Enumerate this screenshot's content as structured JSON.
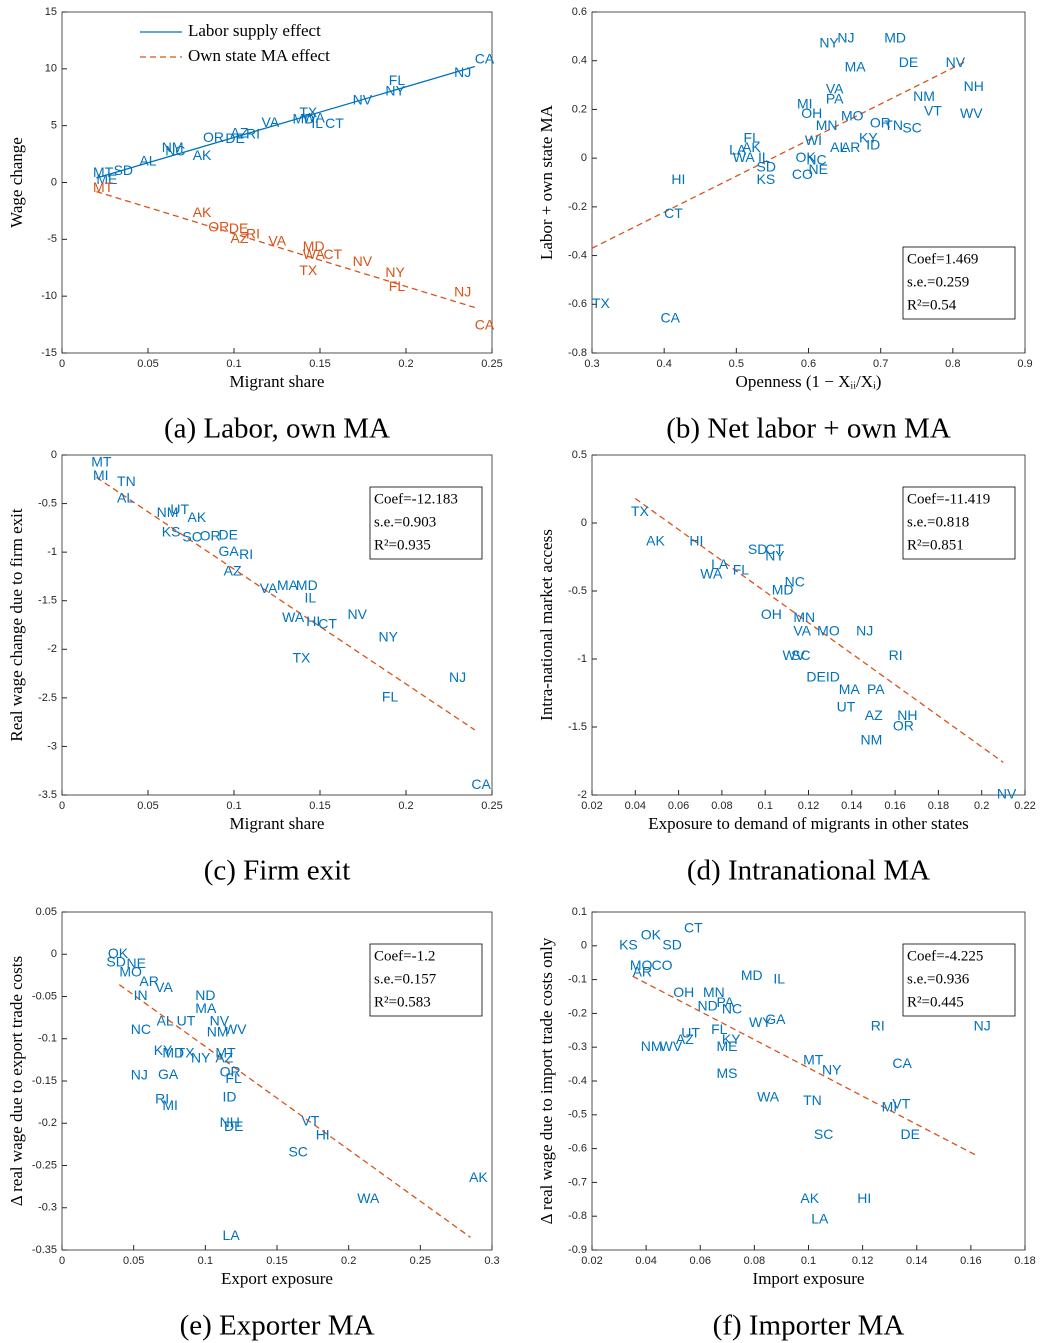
{
  "chart_data": [
    {
      "type": "scatter",
      "caption": "(a) Labor, own MA",
      "xlabel": "Migrant share",
      "ylabel": "Wage change",
      "xlim": [
        0,
        0.25
      ],
      "xticks": [
        0,
        0.05,
        0.1,
        0.15,
        0.2,
        0.25
      ],
      "ylim": [
        -15,
        15
      ],
      "yticks": [
        -15,
        -10,
        -5,
        0,
        5,
        10,
        15
      ],
      "legend": "upper left",
      "series": [
        {
          "name": "Labor supply effect",
          "color": "#0072bd",
          "line_style": "solid",
          "labels": [
            "CA",
            "NJ",
            "FL",
            "NY",
            "NV",
            "TX",
            "CT",
            "IL",
            "WA",
            "MD",
            "VA",
            "RI",
            "AZ",
            "DE",
            "OR",
            "AK",
            "NM",
            "NC",
            "AL",
            "SD",
            "MT",
            "ME"
          ],
          "x": [
            0.24,
            0.228,
            0.19,
            0.188,
            0.169,
            0.138,
            0.153,
            0.145,
            0.14,
            0.134,
            0.116,
            0.107,
            0.098,
            0.095,
            0.082,
            0.076,
            0.058,
            0.06,
            0.045,
            0.03,
            0.018,
            0.02
          ],
          "values": [
            10.8,
            9.6,
            8.9,
            8.0,
            7.2,
            6.1,
            5.1,
            5.1,
            5.6,
            5.5,
            5.2,
            4.2,
            4.3,
            3.8,
            3.9,
            2.3,
            3.0,
            2.7,
            1.8,
            1.0,
            0.8,
            0.2
          ],
          "fit_x": [
            0.02,
            0.24
          ],
          "fit_values": [
            0.4,
            10.2
          ]
        },
        {
          "name": "Own state MA effect",
          "color": "#d95319",
          "line_style": "dashed",
          "labels": [
            "CA",
            "NJ",
            "FL",
            "NY",
            "NV",
            "TX",
            "WA",
            "CT",
            "MD",
            "VA",
            "RI",
            "AZ",
            "DE",
            "OR",
            "AK",
            "MT"
          ],
          "x": [
            0.24,
            0.228,
            0.19,
            0.188,
            0.169,
            0.138,
            0.14,
            0.152,
            0.14,
            0.12,
            0.107,
            0.098,
            0.097,
            0.085,
            0.076,
            0.018
          ],
          "values": [
            -12.6,
            -9.7,
            -9.2,
            -8.0,
            -7.0,
            -7.8,
            -6.4,
            -6.4,
            -5.7,
            -5.2,
            -4.6,
            -5.0,
            -4.1,
            -4.0,
            -2.7,
            -0.5
          ],
          "fit_x": [
            0.02,
            0.24
          ],
          "fit_values": [
            -0.8,
            -11.0
          ]
        }
      ]
    },
    {
      "type": "scatter",
      "caption": "(b) Net labor + own MA",
      "xlabel": "Openness (1 − Xᵢᵢ/Xᵢ)",
      "ylabel": "Labor + own state MA",
      "xlim": [
        0.3,
        0.9
      ],
      "xticks": [
        0.3,
        0.4,
        0.5,
        0.6,
        0.7,
        0.8,
        0.9
      ],
      "ylim": [
        -0.8,
        0.6
      ],
      "yticks": [
        -0.8,
        -0.6,
        -0.4,
        -0.2,
        0,
        0.2,
        0.4,
        0.6
      ],
      "stats": [
        "Coef=1.469",
        "s.e.=0.259",
        "R²=0.54"
      ],
      "stats_loc": "lower right",
      "series": [
        {
          "color": "#0072bd",
          "labels": [
            "TX",
            "CA",
            "HI",
            "CT",
            "LA",
            "AK",
            "FL",
            "WA",
            "IL",
            "SD",
            "KS",
            "OK",
            "NC",
            "CO",
            "NE",
            "MI",
            "OH",
            "NY",
            "NJ",
            "MD",
            "DE",
            "MA",
            "VA",
            "PA",
            "MO",
            "NV",
            "NH",
            "NM",
            "VT",
            "WV",
            "SC",
            "TN",
            "OR",
            "ID",
            "KY",
            "AL",
            "MN",
            "WI",
            "AR"
          ],
          "x": [
            0.3,
            0.395,
            0.41,
            0.4,
            0.49,
            0.508,
            0.51,
            0.495,
            0.53,
            0.528,
            0.528,
            0.582,
            0.597,
            0.577,
            0.6,
            0.584,
            0.59,
            0.615,
            0.64,
            0.705,
            0.725,
            0.65,
            0.624,
            0.624,
            0.645,
            0.79,
            0.815,
            0.745,
            0.76,
            0.81,
            0.73,
            0.705,
            0.685,
            0.68,
            0.67,
            0.63,
            0.61,
            0.595,
            0.645
          ],
          "values": [
            -0.6,
            -0.66,
            -0.09,
            -0.23,
            0.03,
            0.04,
            0.08,
            0.0,
            0.0,
            -0.04,
            -0.09,
            0.0,
            -0.01,
            -0.07,
            -0.05,
            0.22,
            0.18,
            0.47,
            0.49,
            0.49,
            0.39,
            0.37,
            0.28,
            0.24,
            0.17,
            0.39,
            0.29,
            0.25,
            0.19,
            0.18,
            0.12,
            0.13,
            0.14,
            0.05,
            0.08,
            0.04,
            0.13,
            0.07,
            0.04
          ]
        }
      ],
      "fit": {
        "x": [
          0.3,
          0.82
        ],
        "values": [
          -0.37,
          0.4
        ],
        "color": "#d95319"
      }
    },
    {
      "type": "scatter",
      "caption": "(c) Firm exit",
      "xlabel": "Migrant share",
      "ylabel": "Real wage change due to firm exit",
      "xlim": [
        0,
        0.25
      ],
      "xticks": [
        0,
        0.05,
        0.1,
        0.15,
        0.2,
        0.25
      ],
      "ylim": [
        -3.5,
        0
      ],
      "yticks": [
        -3.5,
        -3,
        -2.5,
        -2,
        -1.5,
        -1,
        -0.5,
        0
      ],
      "stats": [
        "Coef=-12.183",
        "s.e.=0.903",
        "R²=0.935"
      ],
      "stats_loc": "upper right",
      "series": [
        {
          "color": "#0072bd",
          "labels": [
            "CA",
            "NJ",
            "FL",
            "NY",
            "TX",
            "NV",
            "CT",
            "HI",
            "WA",
            "IL",
            "MD",
            "MA",
            "VA",
            "AZ",
            "RI",
            "GA",
            "DE",
            "OR",
            "SC",
            "KS",
            "NM",
            "UT",
            "AK",
            "MI",
            "TN",
            "MT",
            "AL"
          ],
          "x": [
            0.238,
            0.225,
            0.186,
            0.184,
            0.134,
            0.166,
            0.149,
            0.142,
            0.128,
            0.141,
            0.136,
            0.125,
            0.115,
            0.094,
            0.103,
            0.091,
            0.091,
            0.08,
            0.07,
            0.058,
            0.055,
            0.063,
            0.073,
            0.018,
            0.032,
            0.017,
            0.032
          ],
          "values": [
            -3.4,
            -2.3,
            -2.5,
            -1.88,
            -2.1,
            -1.65,
            -1.75,
            -1.72,
            -1.68,
            -1.48,
            -1.35,
            -1.35,
            -1.38,
            -1.2,
            -1.03,
            -1.0,
            -0.83,
            -0.84,
            -0.85,
            -0.8,
            -0.6,
            -0.57,
            -0.65,
            -0.22,
            -0.28,
            -0.08,
            -0.45
          ]
        }
      ],
      "fit": {
        "x": [
          0.02,
          0.24
        ],
        "values": [
          -0.23,
          -2.83
        ],
        "color": "#d95319"
      }
    },
    {
      "type": "scatter",
      "caption": "(d) Intranational MA",
      "xlabel": "Exposure to demand of migrants in other states",
      "ylabel": "Intra-national market access",
      "xlim": [
        0.02,
        0.22
      ],
      "xticks": [
        0.02,
        0.04,
        0.06,
        0.08,
        0.1,
        0.12,
        0.14,
        0.16,
        0.18,
        0.2,
        0.22
      ],
      "ylim": [
        -2,
        0.5
      ],
      "yticks": [
        -2,
        -1.5,
        -1,
        -0.5,
        0,
        0.5
      ],
      "stats": [
        "Coef=-11.419",
        "s.e.=0.818",
        "R²=0.851"
      ],
      "stats_loc": "upper right",
      "series": [
        {
          "color": "#0072bd",
          "labels": [
            "TX",
            "AK",
            "HI",
            "WA",
            "LA",
            "FL",
            "SD",
            "CT",
            "NY",
            "NC",
            "MD",
            "OH",
            "MN",
            "MO",
            "VA",
            "WV",
            "SC",
            "NJ",
            "RI",
            "DE",
            "ID",
            "MA",
            "PA",
            "UT",
            "AZ",
            "NH",
            "OR",
            "NM",
            "NV"
          ],
          "x": [
            0.038,
            0.045,
            0.065,
            0.07,
            0.075,
            0.085,
            0.092,
            0.1,
            0.1,
            0.109,
            0.103,
            0.098,
            0.113,
            0.124,
            0.113,
            0.108,
            0.112,
            0.142,
            0.157,
            0.119,
            0.128,
            0.134,
            0.147,
            0.133,
            0.146,
            0.161,
            0.159,
            0.144,
            0.207
          ],
          "values": [
            0.08,
            -0.14,
            -0.14,
            -0.38,
            -0.31,
            -0.35,
            -0.2,
            -0.2,
            -0.25,
            -0.44,
            -0.5,
            -0.68,
            -0.7,
            -0.8,
            -0.8,
            -0.98,
            -0.98,
            -0.8,
            -0.98,
            -1.14,
            -1.14,
            -1.23,
            -1.23,
            -1.36,
            -1.42,
            -1.42,
            -1.5,
            -1.6,
            -2.0
          ]
        }
      ],
      "fit": {
        "x": [
          0.04,
          0.21
        ],
        "values": [
          0.18,
          -1.76
        ],
        "color": "#d95319"
      }
    },
    {
      "type": "scatter",
      "caption": "(e) Exporter MA",
      "xlabel": "Export exposure",
      "ylabel": "Δ real wage due to export trade costs",
      "xlim": [
        0,
        0.3
      ],
      "xticks": [
        0,
        0.05,
        0.1,
        0.15,
        0.2,
        0.25,
        0.3
      ],
      "ylim": [
        -0.35,
        0.05
      ],
      "yticks": [
        -0.35,
        -0.3,
        -0.25,
        -0.2,
        -0.15,
        -0.1,
        -0.05,
        0,
        0.05
      ],
      "stats": [
        "Coef=-1.2",
        "s.e.=0.157",
        "R²=0.583"
      ],
      "stats_loc": "upper right",
      "series": [
        {
          "color": "#0072bd",
          "labels": [
            "OK",
            "SD",
            "NE",
            "MO",
            "AR",
            "VA",
            "IN",
            "AL",
            "NC",
            "ND",
            "MA",
            "UT",
            "NV",
            "NM",
            "WV",
            "KY",
            "MD",
            "TX",
            "NY",
            "AZ",
            "MT",
            "OR",
            "FL",
            "NJ",
            "GA",
            "RI",
            "MI",
            "ID",
            "NH",
            "DE",
            "VT",
            "HI",
            "SC",
            "AK",
            "WA",
            "LA"
          ],
          "x": [
            0.032,
            0.031,
            0.045,
            0.04,
            0.054,
            0.065,
            0.05,
            0.066,
            0.048,
            0.093,
            0.093,
            0.08,
            0.103,
            0.101,
            0.113,
            0.064,
            0.07,
            0.08,
            0.09,
            0.107,
            0.107,
            0.11,
            0.114,
            0.048,
            0.067,
            0.065,
            0.07,
            0.112,
            0.11,
            0.113,
            0.167,
            0.177,
            0.158,
            0.284,
            0.206,
            0.112
          ],
          "values": [
            0.0,
            -0.01,
            -0.012,
            -0.022,
            -0.033,
            -0.04,
            -0.05,
            -0.08,
            -0.09,
            -0.05,
            -0.065,
            -0.08,
            -0.08,
            -0.093,
            -0.09,
            -0.115,
            -0.118,
            -0.118,
            -0.124,
            -0.124,
            -0.118,
            -0.14,
            -0.148,
            -0.144,
            -0.143,
            -0.172,
            -0.18,
            -0.17,
            -0.2,
            -0.205,
            -0.198,
            -0.215,
            -0.235,
            -0.265,
            -0.29,
            -0.334
          ]
        }
      ],
      "fit": {
        "x": [
          0.04,
          0.285
        ],
        "values": [
          -0.036,
          -0.335
        ],
        "color": "#d95319"
      }
    },
    {
      "type": "scatter",
      "caption": "(f) Importer MA",
      "xlabel": "Import exposure",
      "ylabel": "Δ real wage due to import trade costs only",
      "xlim": [
        0.02,
        0.18
      ],
      "xticks": [
        0.02,
        0.04,
        0.06,
        0.08,
        0.1,
        0.12,
        0.14,
        0.16,
        0.18
      ],
      "ylim": [
        -0.9,
        0.1
      ],
      "yticks": [
        -0.9,
        -0.8,
        -0.7,
        -0.6,
        -0.5,
        -0.4,
        -0.3,
        -0.2,
        -0.1,
        0,
        0.1
      ],
      "stats": [
        "Coef=-4.225",
        "s.e.=0.936",
        "R²=0.445"
      ],
      "stats_loc": "upper right",
      "series": [
        {
          "color": "#0072bd",
          "labels": [
            "CT",
            "OK",
            "KS",
            "SD",
            "MO",
            "CO",
            "AR",
            "MD",
            "IL",
            "OH",
            "MN",
            "PA",
            "ND",
            "NC",
            "GA",
            "WY",
            "RI",
            "NJ",
            "UT",
            "AZ",
            "FL",
            "KY",
            "ME",
            "NM",
            "WV",
            "MT",
            "NY",
            "CA",
            "MS",
            "WA",
            "TN",
            "VT",
            "MI",
            "SC",
            "DE",
            "AK",
            "HI",
            "LA"
          ],
          "x": [
            0.054,
            0.038,
            0.03,
            0.046,
            0.034,
            0.042,
            0.035,
            0.075,
            0.087,
            0.05,
            0.061,
            0.066,
            0.059,
            0.068,
            0.084,
            0.078,
            0.123,
            0.161,
            0.053,
            0.051,
            0.064,
            0.068,
            0.066,
            0.038,
            0.045,
            0.098,
            0.105,
            0.131,
            0.066,
            0.081,
            0.098,
            0.131,
            0.127,
            0.102,
            0.134,
            0.097,
            0.118,
            0.101
          ],
          "values": [
            0.05,
            0.03,
            0.0,
            0.0,
            -0.06,
            -0.06,
            -0.08,
            -0.09,
            -0.1,
            -0.14,
            -0.14,
            -0.17,
            -0.18,
            -0.19,
            -0.22,
            -0.23,
            -0.24,
            -0.24,
            -0.26,
            -0.28,
            -0.25,
            -0.28,
            -0.3,
            -0.3,
            -0.3,
            -0.34,
            -0.37,
            -0.35,
            -0.38,
            -0.45,
            -0.46,
            -0.47,
            -0.48,
            -0.56,
            -0.56,
            -0.75,
            -0.75,
            -0.81
          ]
        }
      ],
      "fit": {
        "x": [
          0.035,
          0.162
        ],
        "values": [
          -0.09,
          -0.62
        ],
        "color": "#d95319"
      }
    }
  ]
}
